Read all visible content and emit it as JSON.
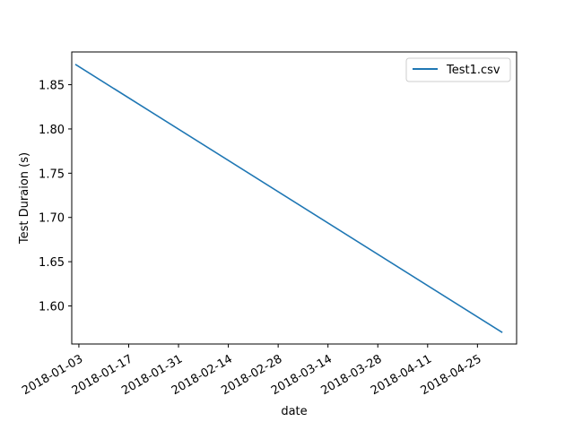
{
  "chart_data": {
    "type": "line",
    "title": "",
    "xlabel": "date",
    "ylabel": "Test Duraion (s)",
    "x_type": "date",
    "xlim": [
      "2018-01-01",
      "2018-05-06"
    ],
    "ylim": [
      1.557,
      1.887
    ],
    "x_ticks": [
      "2018-01-03",
      "2018-01-17",
      "2018-01-31",
      "2018-02-14",
      "2018-02-28",
      "2018-03-14",
      "2018-03-28",
      "2018-04-11",
      "2018-04-25"
    ],
    "y_ticks": [
      "1.60",
      "1.65",
      "1.70",
      "1.75",
      "1.80",
      "1.85"
    ],
    "grid": false,
    "legend_position": "top-right",
    "series": [
      {
        "name": "Test1.csv",
        "color": "#1f77b4",
        "x": [
          "2018-01-02",
          "2018-05-02"
        ],
        "y": [
          1.873,
          1.57
        ]
      }
    ]
  }
}
